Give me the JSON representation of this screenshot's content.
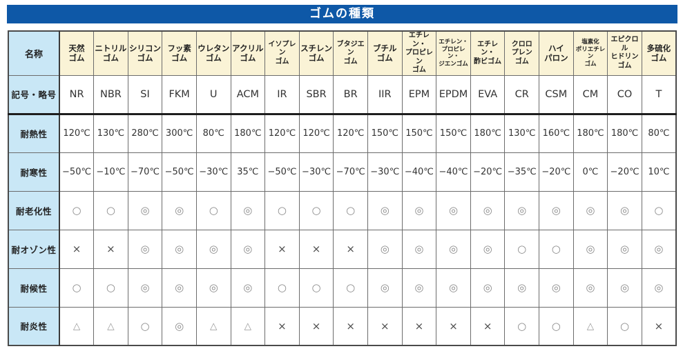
{
  "title": "ゴムの種類",
  "table": {
    "corner_label": "名称",
    "column_headers": [
      "天然\nゴム",
      "ニトリル\nゴム",
      "シリコン\nゴム",
      "フッ素\nゴム",
      "ウレタン\nゴム",
      "アクリル\nゴム",
      "イソプレン\nゴム",
      "スチレン\nゴム",
      "ブタジエン\nゴム",
      "ブチル\nゴム",
      "エチレン・\nプロピレン\nゴム",
      "エチレン・\nプロピレン・\nジエンゴム",
      "エチレン・\n酢ビゴム",
      "クロロ\nプレン\nゴム",
      "ハイ\nパロン",
      "塩素化\nポリエチレン\nゴム",
      "エピクロル\nヒドリン\nゴム",
      "多硫化\nゴム"
    ],
    "rows": [
      {
        "label": "記号・略号",
        "values": [
          "NR",
          "NBR",
          "SI",
          "FKM",
          "U",
          "ACM",
          "IR",
          "SBR",
          "BR",
          "IIR",
          "EPM",
          "EPDM",
          "EVA",
          "CR",
          "CSM",
          "CM",
          "CO",
          "T"
        ]
      },
      {
        "label": "耐熱性",
        "values": [
          "120℃",
          "130℃",
          "280℃",
          "300℃",
          "80℃",
          "180℃",
          "120℃",
          "120℃",
          "120℃",
          "150℃",
          "150℃",
          "150℃",
          "180℃",
          "130℃",
          "160℃",
          "180℃",
          "180℃",
          "80℃"
        ]
      },
      {
        "label": "耐寒性",
        "values": [
          "−50℃",
          "−10℃",
          "−70℃",
          "−50℃",
          "−30℃",
          "35℃",
          "−50℃",
          "−30℃",
          "−70℃",
          "−30℃",
          "−40℃",
          "−40℃",
          "−20℃",
          "−35℃",
          "−20℃",
          "0℃",
          "−20℃",
          "10℃"
        ]
      },
      {
        "label": "耐老化性",
        "values": [
          "○",
          "○",
          "◎",
          "◎",
          "○",
          "◎",
          "○",
          "○",
          "○",
          "◎",
          "◎",
          "◎",
          "◎",
          "◎",
          "◎",
          "◎",
          "◎",
          "○"
        ]
      },
      {
        "label": "耐オゾン性",
        "values": [
          "×",
          "×",
          "◎",
          "◎",
          "◎",
          "◎",
          "×",
          "×",
          "×",
          "◎",
          "◎",
          "◎",
          "◎",
          "○",
          "○",
          "◎",
          "◎",
          "◎"
        ]
      },
      {
        "label": "耐候性",
        "values": [
          "○",
          "○",
          "◎",
          "◎",
          "◎",
          "◎",
          "○",
          "○",
          "○",
          "◎",
          "◎",
          "◎",
          "◎",
          "◎",
          "◎",
          "◎",
          "◎",
          "◎"
        ]
      },
      {
        "label": "耐炎性",
        "values": [
          "△",
          "△",
          "○",
          "◎",
          "△",
          "△",
          "×",
          "×",
          "×",
          "×",
          "×",
          "×",
          "×",
          "○",
          "○",
          "△",
          "○",
          "×"
        ]
      }
    ]
  },
  "colors": {
    "title_bg": "#0e58a7",
    "header_bg": "#faf3d6",
    "label_bg": "#c9e7f6",
    "cell_bg": "#ffffff",
    "grid": "#6b6b6b",
    "frame": "#4a4a4a"
  }
}
